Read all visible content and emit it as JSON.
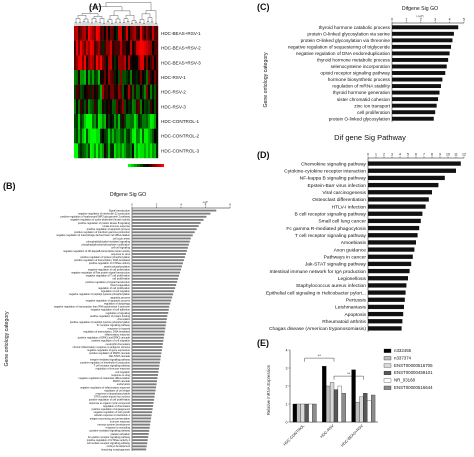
{
  "panels": {
    "a": {
      "letter": "(A)"
    },
    "b": {
      "letter": "(B)"
    },
    "c": {
      "letter": "(C)"
    },
    "d": {
      "letter": "(D)"
    },
    "e": {
      "letter": "(E)"
    }
  },
  "chart_data": [
    {
      "type": "heatmap",
      "panel": "A",
      "rows": [
        "HDC-BEAS+RSV-1",
        "HDC-BEAS+RSV-2",
        "HDC-BEAS+RSV-3",
        "HDC-RSV-1",
        "HDC-RSV-2",
        "HDC-RSV-3",
        "HDC-CONTROL-1",
        "HDC-CONTROL-2",
        "HDC-CONTROL-3"
      ],
      "color_scale": [
        "#00ff00",
        "#000000",
        "#ff0000"
      ],
      "dendrogram": true
    },
    {
      "type": "bar",
      "panel": "B",
      "title": "Difgene Sig GO",
      "xlabel": "-LgP",
      "ylabel": "Gene ontology category",
      "orientation": "horizontal",
      "categories": [
        "Signal transduction",
        "negative regulation of interleukin-12 production",
        "positive regulation of hyaluronan/SHP2 glycoprotein 2 pathway",
        "negative regulation of cyclin-dependent kinase activity",
        "positive regulation of protein kinase B signaling",
        "innate immune response",
        "positive regulation of apoptotic process",
        "positive regulation of interferon-gamma production",
        "negative regulation of macrophage derived foam cell differentiation",
        "cell cycle arrest",
        "phosphatidylinositol-mediated signaling",
        "phosphatidylinositol-phosphate modification",
        "cell-cell signaling",
        "negative regulation of NF-kappaB transcription factor activity",
        "response to virus",
        "positive regulation of protein phosphorylation",
        "positive regulation of transcription, DNA-templated",
        "positive regulation of GTPase activity",
        "protein phosphorylation",
        "negative regulation of cell proliferation",
        "negative regulation of Ras protein signal transduction",
        "negative regulation of T cell proliferation",
        "cell proliferation",
        "positive regulation of signal transduction",
        "blood coagulation",
        "regulation of cell proliferation",
        "regulation of cell migration",
        "negative regulation of peptidyl-tyrosine phosphorylation",
        "apoptotic process",
        "negative regulation of apoptotic process",
        "regulation of autophagy",
        "negative regulation of transcription from RNA polymerase II promoter",
        "negative regulation of cell adhesion",
        "regulation of signaling",
        "positive regulation of protein binding",
        "chemotaxis",
        "positive regulation of peptidyl-tyrosine phosphorylation",
        "Fc receptor signaling pathway",
        "response to hypoxia",
        "regulation of transcription, DNA-templated",
        "inflammatory response",
        "positive regulation of ERK1 and ERK2 cascade",
        "positive regulation of cell migration",
        "neutrophil chemotaxis",
        "chronic inflammatory response to antigenic stimulus",
        "negative regulation of gene expression",
        "positive regulation of MAPK cascade",
        "JAK-STAT cascade",
        "integrin-mediated signaling pathway",
        "positive regulation of interleukin-6 production",
        "T cell receptor signaling pathway",
        "regulation of immune response",
        "cell migration",
        "response to drug",
        "negative regulation of osteoclast differentiation",
        "MAPK cascade",
        "endocytosis",
        "negative regulation of inflammatory response",
        "regulation of cell shape",
        "response to lipopolysaccharide",
        "STAT protein import into nucleus",
        "positive regulation of cell proliferation",
        "response to organic cyclic compound",
        "regulation of chemotaxis",
        "positive regulation of angiogenesis",
        "negative regulation of cell growth",
        "cellular response to interleukin-1",
        "antigen processing and presentation",
        "immune response",
        "nervous system development",
        "response to wounding",
        "cytokine-mediated signaling pathway",
        "platelet activation",
        "Fc-epsilon receptor signaling pathway",
        "positive regulation of GTPase activity 2",
        "cell surface receptor signaling pathway",
        "embryo development",
        "branching morphogenesis"
      ],
      "values": [
        8.6,
        8.0,
        7.6,
        7.3,
        7.0,
        6.8,
        6.6,
        6.4,
        6.2,
        6.0,
        5.9,
        5.8,
        5.7,
        5.6,
        5.5,
        5.4,
        5.3,
        5.2,
        5.1,
        5.0,
        4.9,
        4.8,
        4.7,
        4.6,
        4.5,
        4.4,
        4.3,
        4.2,
        4.1,
        4.0,
        3.9,
        3.8,
        3.75,
        3.7,
        3.6,
        3.55,
        3.5,
        3.45,
        3.4,
        3.35,
        3.3,
        3.25,
        3.2,
        3.15,
        3.1,
        3.05,
        3.0,
        2.95,
        2.9,
        2.85,
        2.8,
        2.75,
        2.7,
        2.65,
        2.6,
        2.55,
        2.5,
        2.45,
        2.4,
        2.35,
        2.3,
        2.25,
        2.2,
        2.15,
        2.1,
        2.05,
        2.0,
        1.95,
        1.9,
        1.85,
        1.8,
        1.75,
        1.7,
        1.65,
        1.6,
        1.55,
        1.5,
        1.45
      ],
      "xlim": [
        0,
        10
      ],
      "xticks": [
        "0",
        "2",
        "4",
        "6",
        "8"
      ],
      "bar_color": "#7f7f7f"
    },
    {
      "type": "bar",
      "panel": "C",
      "title": "Dif gene Sig Pathway",
      "xlabel": "(-LgP)",
      "ylabel": "Gene ontology category",
      "orientation": "horizontal",
      "categories": [
        "thyroid hormone catabolic process",
        "protein O-linked glycosylation via serine",
        "protein O-linked glycosylation via threonine",
        "negative regulation of sequestering of triglyceride",
        "negative regulation of DNA endoreduplication",
        "thyroid hormone metabolic process",
        "selenocysteine incorporation",
        "opioid receptor signaling pathway",
        "hormone biosynthetic process",
        "regulation of mRNA stability",
        "thyroid hormone generation",
        "sister chromatid cohesion",
        "zinc ion transport",
        "cell proliferation",
        "protein O-linked glycosylation"
      ],
      "values": [
        4.6,
        4.3,
        4.2,
        4.1,
        4.0,
        3.9,
        3.8,
        3.7,
        3.5,
        3.4,
        3.3,
        3.2,
        3.1,
        3.0,
        2.9
      ],
      "xlim": [
        0,
        5
      ],
      "xticks": [
        "0",
        "1",
        "2",
        "3",
        "4",
        "5"
      ],
      "bar_color": "#111111"
    },
    {
      "type": "bar",
      "panel": "D",
      "orientation": "horizontal",
      "categories": [
        "Chemokine signaling pathway",
        "Cytokine-cytokine receptor interaction",
        "NF-kappa B signaling pathway",
        "Epstein-Barr virus infection",
        "Viral carcinogenesis",
        "Osteoclast differentiation",
        "HTLV-I infection",
        "B cell receptor signaling pathway",
        "Small cell lung cancer",
        "Fc gamma R-mediated phagocytosis",
        "T cell receptor signaling pathway",
        "Amoebiasis",
        "Axon guidance",
        "Pathways in cancer",
        "Jak-STAT signaling pathway",
        "Intestinal immune network for IgA production",
        "Legionellosis",
        "Staphylococcus aureus infection",
        "Epithelial cell signaling in Helicobacter pylori...",
        "Pertussis",
        "Leishmaniasis",
        "Apoptosis",
        "Rheumatoid arthritis",
        "Chagas disease (American trypanosomiasis)"
      ],
      "values": [
        11.6,
        11.0,
        9.6,
        8.8,
        8.0,
        7.6,
        7.2,
        6.8,
        6.6,
        6.4,
        6.2,
        6.0,
        5.8,
        5.6,
        5.4,
        5.2,
        5.0,
        4.8,
        4.7,
        4.6,
        4.5,
        4.4,
        4.3,
        4.2
      ],
      "xlim": [
        0,
        12
      ],
      "xticks": [
        "0",
        "1",
        "2",
        "3",
        "4",
        "5",
        "6",
        "7",
        "8",
        "9",
        "10",
        "11",
        "12"
      ],
      "bar_color": "#111111"
    },
    {
      "type": "bar",
      "panel": "E",
      "ylabel": "Relative mRNA Expression",
      "categories": [
        "HDC-CONTROL",
        "HDC-RSV",
        "HDC-BEAS+RSV"
      ],
      "series": [
        {
          "name": "n332455",
          "values": [
            1.0,
            3.1,
            2.9
          ],
          "color": "#000000"
        },
        {
          "name": "n337374",
          "values": [
            1.0,
            2.0,
            1.1
          ],
          "color": "#bdbdbd"
        },
        {
          "name": "ENST00000516705",
          "values": [
            1.0,
            2.2,
            1.4
          ],
          "color": "#d9d9d9"
        },
        {
          "name": "ENST00000459101",
          "values": [
            1.0,
            1.8,
            1.6
          ],
          "color": "#595959"
        },
        {
          "name": "NR_03168",
          "values": [
            1.0,
            2.0,
            1.2
          ],
          "color": "#ffffff"
        },
        {
          "name": "ENST00000516644",
          "values": [
            1.0,
            1.6,
            1.5
          ],
          "color": "#8c8c8c"
        }
      ],
      "ylim": [
        0,
        4
      ],
      "yticks": [
        "0",
        "1",
        "2",
        "3",
        "4"
      ],
      "significance": [
        "**",
        "**"
      ]
    }
  ]
}
